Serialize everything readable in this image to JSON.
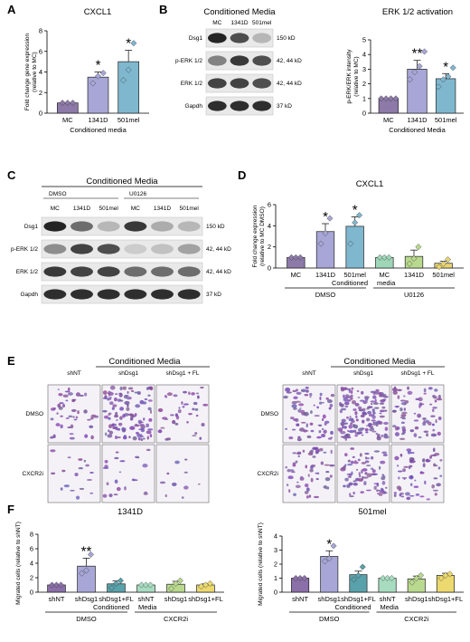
{
  "panels": {
    "a": "A",
    "b": "B",
    "c": "C",
    "d": "D",
    "e": "E",
    "f": "F"
  },
  "colors": {
    "mc": "#8d7aa8",
    "c1341d": "#a7a6d6",
    "c501mel": "#7fb7cf",
    "u_mc": "#9fd6b8",
    "u_1341d": "#b9d98f",
    "u_501mel": "#e8d472",
    "mig_shnt": "#8a6fa8",
    "mig_shdsg1": "#a7a6d6",
    "mig_fl": "#5aa2ab"
  },
  "blot_b": {
    "title": "Conditioned Media",
    "lanes": [
      "MC",
      "1341D",
      "501mel"
    ],
    "rows": [
      {
        "label": "Dsg1",
        "kd": "150 kD",
        "bands": [
          0.95,
          0.75,
          0.25
        ]
      },
      {
        "label": "p-ERK 1/2",
        "kd": "42, 44 kD",
        "bands": [
          0.5,
          0.85,
          0.75
        ]
      },
      {
        "label": "ERK 1/2",
        "kd": "42, 44 kD",
        "bands": [
          0.8,
          0.8,
          0.75
        ]
      },
      {
        "label": "Gapdh",
        "kd": "37 kD",
        "bands": [
          0.9,
          0.9,
          0.9
        ]
      }
    ]
  },
  "blot_c": {
    "title": "Conditioned Media",
    "groups": [
      "DMSO",
      "U0126"
    ],
    "lanes": [
      "MC",
      "1341D",
      "501mel",
      "MC",
      "1341D",
      "501mel"
    ],
    "rows": [
      {
        "label": "Dsg1",
        "kd": "150 kD",
        "bands": [
          0.95,
          0.6,
          0.25,
          0.85,
          0.3,
          0.25
        ]
      },
      {
        "label": "p-ERK 1/2",
        "kd": "42, 44 kD",
        "bands": [
          0.45,
          0.8,
          0.75,
          0.15,
          0.2,
          0.35
        ]
      },
      {
        "label": "ERK 1/2",
        "kd": "42, 44 kD",
        "bands": [
          0.85,
          0.8,
          0.8,
          0.6,
          0.6,
          0.6
        ]
      },
      {
        "label": "Gapdh",
        "kd": "37 kD",
        "bands": [
          0.9,
          0.9,
          0.9,
          0.9,
          0.9,
          0.9
        ]
      }
    ]
  },
  "micro": {
    "left": {
      "title": "Conditioned Media",
      "cols": [
        "shNT",
        "shDsg1",
        "shDsg1 + FL"
      ],
      "rows": [
        "DMSO",
        "CXCR2i"
      ]
    },
    "right": {
      "title": "Conditioned Media",
      "cols": [
        "shNT",
        "shDsg1",
        "shDsg1 + FL"
      ],
      "rows": [
        "DMSO",
        "CXCR2i"
      ]
    }
  },
  "chart_data": [
    {
      "id": "A",
      "type": "bar",
      "title": "CXCL1",
      "ylabel": "Fold change gene expression (relative to MC)",
      "xlabel": "Conditioned media",
      "ylim": [
        0,
        8
      ],
      "yticks": [
        0,
        2,
        4,
        6,
        8
      ],
      "categories": [
        "MC",
        "1341D",
        "501mel"
      ],
      "values": [
        1.0,
        3.5,
        5.0
      ],
      "errors": [
        0.0,
        0.5,
        1.1
      ],
      "points": [
        [
          1,
          1,
          1
        ],
        [
          2.9,
          3.6,
          3.9
        ],
        [
          3.2,
          4.2,
          6.8
        ]
      ],
      "sig": [
        "",
        "*",
        "*"
      ]
    },
    {
      "id": "B",
      "type": "bar",
      "title": "ERK 1/2 activation",
      "ylabel": "p-ERK/ERK intensity (relative to MC)",
      "xlabel": "Conditioned  Media",
      "ylim": [
        0,
        5
      ],
      "yticks": [
        0,
        1,
        2,
        3,
        4,
        5
      ],
      "categories": [
        "MC",
        "1341D",
        "501mel"
      ],
      "values": [
        1.0,
        3.0,
        2.35
      ],
      "errors": [
        0.0,
        0.6,
        0.35
      ],
      "points": [
        [
          1,
          1,
          1,
          1
        ],
        [
          2.3,
          2.8,
          3.2,
          4.2
        ],
        [
          1.8,
          2.3,
          2.5,
          3.1
        ]
      ],
      "sig": [
        "",
        "**",
        "*"
      ]
    },
    {
      "id": "D",
      "type": "bar",
      "title": "CXCL1",
      "ylabel": "Fold change expression (relative to MC DMSO)",
      "ylim": [
        0,
        6
      ],
      "yticks": [
        0,
        2,
        4,
        6
      ],
      "categories": [
        "MC",
        "1341D",
        "501mel",
        "MC",
        "1341D",
        "501mel"
      ],
      "values": [
        1.0,
        3.45,
        3.95,
        1.0,
        1.1,
        0.45
      ],
      "errors": [
        0.0,
        0.75,
        0.9,
        0.0,
        0.6,
        0.2
      ],
      "points": [
        [
          1,
          1,
          1
        ],
        [
          2.3,
          3.3,
          4.7
        ],
        [
          2.3,
          4.3,
          5.0
        ],
        [
          1,
          1,
          1
        ],
        [
          0.4,
          0.9,
          2.0
        ],
        [
          0.1,
          0.4,
          0.8
        ]
      ],
      "sig": [
        "",
        "*",
        "*",
        "",
        "",
        ""
      ],
      "groups": [
        "DMSO",
        "U0126"
      ],
      "center_label": [
        "Conditioned",
        "media"
      ]
    },
    {
      "id": "F1",
      "type": "bar",
      "title": "1341D",
      "ylabel": "Migrated cells (relative to shNT)",
      "ylim": [
        0,
        8
      ],
      "yticks": [
        0,
        2,
        4,
        6,
        8
      ],
      "categories": [
        "shNT",
        "shDsg1",
        "shDsg1+FL",
        "shNT",
        "shDsg1",
        "shDsg1+FL"
      ],
      "values": [
        1.0,
        3.6,
        1.15,
        1.0,
        1.1,
        1.0
      ],
      "errors": [
        0.0,
        1.1,
        0.4,
        0.0,
        0.4,
        0.15
      ],
      "points": [
        [
          1,
          1,
          1
        ],
        [
          2.6,
          3.0,
          5.2
        ],
        [
          0.6,
          1.2,
          1.6
        ],
        [
          1,
          1,
          1
        ],
        [
          0.5,
          1.2,
          1.6
        ],
        [
          0.8,
          1.0,
          1.2
        ]
      ],
      "sig": [
        "",
        "**",
        "",
        "",
        "",
        ""
      ],
      "groups": [
        "DMSO",
        "CXCR2i"
      ],
      "center_label": [
        "Conditioned",
        "Media"
      ]
    },
    {
      "id": "F2",
      "type": "bar",
      "title": "501mel",
      "ylabel": "Migrated cells (relative to shNT)",
      "ylim": [
        0,
        4
      ],
      "yticks": [
        0,
        1,
        2,
        3,
        4
      ],
      "categories": [
        "shNT",
        "shDsg1",
        "shDsg1+FL",
        "shNT",
        "shDsg1",
        "shDsg1+FL"
      ],
      "values": [
        1.0,
        2.55,
        1.25,
        1.0,
        0.95,
        1.2
      ],
      "errors": [
        0.0,
        0.4,
        0.25,
        0.0,
        0.2,
        0.15
      ],
      "points": [
        [
          1,
          1,
          1
        ],
        [
          2.2,
          2.4,
          3.3
        ],
        [
          0.9,
          1.2,
          1.8
        ],
        [
          1,
          1,
          1
        ],
        [
          0.7,
          1.0,
          1.2
        ],
        [
          1.0,
          1.2,
          1.3
        ]
      ],
      "sig": [
        "",
        "*",
        "",
        "",
        "",
        ""
      ],
      "groups": [
        "DMSO",
        "CXCR2i"
      ],
      "center_label": [
        "Conditioned",
        "Media"
      ]
    }
  ]
}
